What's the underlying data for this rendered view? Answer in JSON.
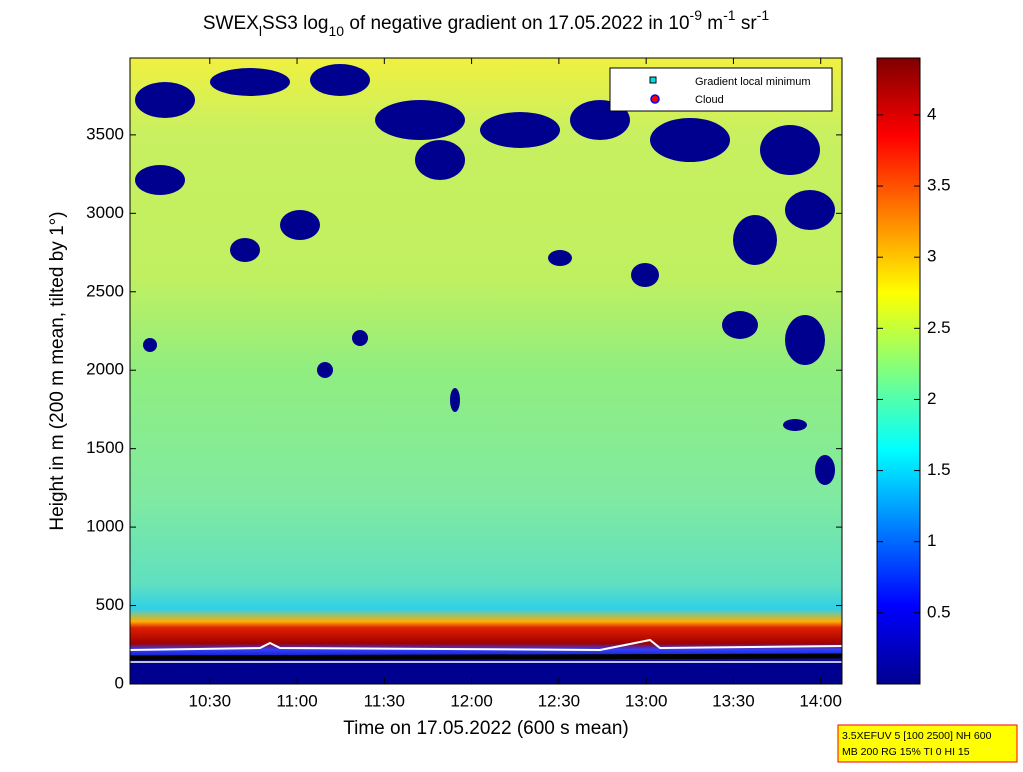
{
  "chart_data": {
    "type": "heatmap",
    "title_parts": [
      {
        "text": "SWEX"
      },
      {
        "text": "l",
        "shift": "sub"
      },
      {
        "text": "SS3 log"
      },
      {
        "text": "10",
        "shift": "sub"
      },
      {
        "text": " of negative gradient on 17.05.2022 in 10"
      },
      {
        "text": "-9",
        "shift": "super"
      },
      {
        "text": " m"
      },
      {
        "text": "-1",
        "shift": "super"
      },
      {
        "text": " sr"
      },
      {
        "text": "-1",
        "shift": "super"
      }
    ],
    "x_label": "Time on 17.05.2022 (600 s mean)",
    "y_label": "Height in m (200 m mean, tilted by 1°)",
    "xlim": [
      10.043,
      14.122
    ],
    "xticks": [
      {
        "value": 10.5,
        "label": "10:30"
      },
      {
        "value": 11,
        "label": "11:00"
      },
      {
        "value": 11.5,
        "label": "11:30"
      },
      {
        "value": 12,
        "label": "12:00"
      },
      {
        "value": 12.5,
        "label": "12:30"
      },
      {
        "value": 13,
        "label": "13:00"
      },
      {
        "value": 13.5,
        "label": "13:30"
      },
      {
        "value": 14,
        "label": "14:00"
      }
    ],
    "ylim": [
      0,
      3990
    ],
    "yticks": [
      0,
      500,
      1000,
      1500,
      2000,
      2500,
      3000,
      3500
    ],
    "clim": [
      0,
      4.4
    ],
    "cticks": [
      0.5,
      1,
      1.5,
      2,
      2.5,
      3,
      3.5,
      4
    ],
    "legend": [
      {
        "name": "Gradient local minimum",
        "color": "#00e0e0"
      },
      {
        "name": "Cloud",
        "color": "#ff0000"
      }
    ],
    "legend_position": "upper right",
    "info_lines": [
      "3.5XEFUV 5 [100 2500] NH 600",
      "MB 200 RG 15% TI 0 HI 15"
    ]
  }
}
